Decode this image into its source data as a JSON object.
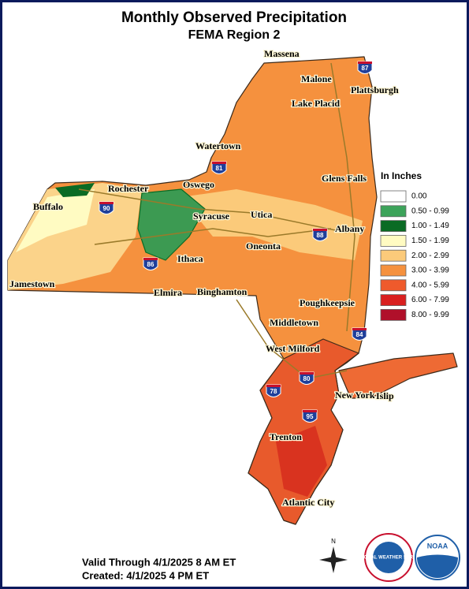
{
  "header": {
    "title": "Monthly Observed Precipitation",
    "subtitle": "FEMA Region 2"
  },
  "legend": {
    "title": "In Inches",
    "items": [
      {
        "label": "0.00",
        "color": "#ffffff"
      },
      {
        "label": "0.50 - 0.99",
        "color": "#3ca35a"
      },
      {
        "label": "1.00 - 1.49",
        "color": "#0a6b24"
      },
      {
        "label": "1.50 - 1.99",
        "color": "#fffbc2"
      },
      {
        "label": "2.00 - 2.99",
        "color": "#fbca7a"
      },
      {
        "label": "3.00 - 3.99",
        "color": "#f5913e"
      },
      {
        "label": "4.00 - 5.99",
        "color": "#ef5a2c"
      },
      {
        "label": "6.00 - 7.99",
        "color": "#d92020"
      },
      {
        "label": "8.00 - 9.99",
        "color": "#b0102a"
      }
    ]
  },
  "cities": [
    "Massena",
    "Malone",
    "Plattsburgh",
    "Lake Placid",
    "Watertown",
    "Glens Falls",
    "Rochester",
    "Oswego",
    "Buffalo",
    "Syracuse",
    "Utica",
    "Albany",
    "Oneonta",
    "Ithaca",
    "Jamestown",
    "Elmira",
    "Binghamton",
    "Poughkeepsie",
    "Middletown",
    "West Milford",
    "New York",
    "Islip",
    "Trenton",
    "Atlantic City"
  ],
  "interstates": [
    "87",
    "81",
    "90",
    "88",
    "86",
    "84",
    "80",
    "78",
    "95"
  ],
  "footer": {
    "valid": "Valid Through 4/1/2025 8 AM ET",
    "created": "Created: 4/1/2025 4 PM ET"
  },
  "logos": {
    "north": "N",
    "nws": "NATIONAL WEATHER SERVICE",
    "noaa": "NOAA"
  }
}
